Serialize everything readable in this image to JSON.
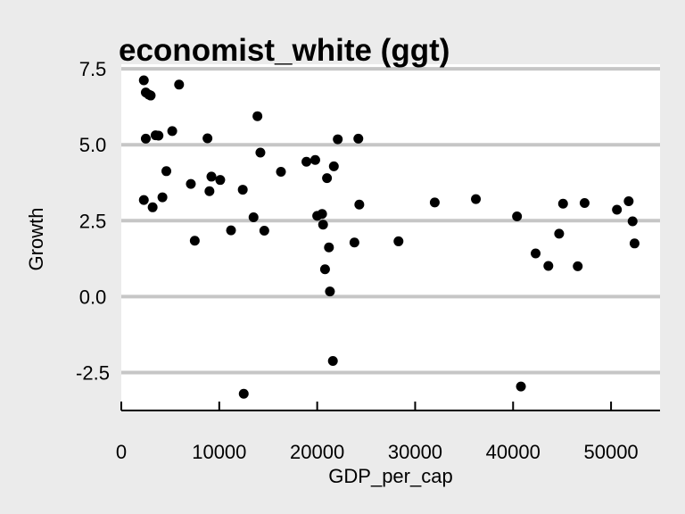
{
  "chart_data": {
    "type": "scatter",
    "title": "economist_white (ggt)",
    "xlabel": "GDP_per_cap",
    "ylabel": "Growth",
    "xlim": [
      0,
      55000
    ],
    "ylim": [
      -3.75,
      7.65
    ],
    "xticks": [
      0,
      10000,
      20000,
      30000,
      40000,
      50000
    ],
    "xtick_labels": [
      "0",
      "10000",
      "20000",
      "30000",
      "40000",
      "50000"
    ],
    "yticks": [
      -2.5,
      0.0,
      2.5,
      5.0,
      7.5
    ],
    "ytick_labels": [
      "-2.5",
      "0.0",
      "2.5",
      "5.0",
      "7.5"
    ],
    "grid": "horizontal",
    "colors": {
      "background": "#ebebeb",
      "panel": "#ffffff",
      "grid": "#c6c6c6",
      "point": "#000000"
    },
    "points": [
      [
        2300,
        7.12
      ],
      [
        2500,
        6.72
      ],
      [
        2800,
        6.65
      ],
      [
        3000,
        6.62
      ],
      [
        5900,
        6.98
      ],
      [
        2500,
        5.2
      ],
      [
        3500,
        5.31
      ],
      [
        3800,
        5.3
      ],
      [
        5200,
        5.45
      ],
      [
        8800,
        5.21
      ],
      [
        2300,
        3.18
      ],
      [
        3200,
        2.94
      ],
      [
        4200,
        3.27
      ],
      [
        4600,
        4.13
      ],
      [
        7100,
        3.71
      ],
      [
        7500,
        1.84
      ],
      [
        9000,
        3.47
      ],
      [
        9200,
        3.95
      ],
      [
        10100,
        3.84
      ],
      [
        11200,
        2.18
      ],
      [
        12400,
        3.52
      ],
      [
        12500,
        -3.2
      ],
      [
        13500,
        2.61
      ],
      [
        13900,
        5.94
      ],
      [
        14200,
        4.74
      ],
      [
        14600,
        2.17
      ],
      [
        16300,
        4.11
      ],
      [
        18900,
        4.44
      ],
      [
        19800,
        4.5
      ],
      [
        20000,
        2.66
      ],
      [
        20500,
        2.72
      ],
      [
        20600,
        2.37
      ],
      [
        20800,
        0.9
      ],
      [
        21000,
        3.9
      ],
      [
        21200,
        1.62
      ],
      [
        21300,
        0.17
      ],
      [
        21600,
        -2.12
      ],
      [
        21700,
        4.29
      ],
      [
        22100,
        5.18
      ],
      [
        23800,
        1.78
      ],
      [
        24200,
        5.2
      ],
      [
        24300,
        3.03
      ],
      [
        28300,
        1.82
      ],
      [
        32000,
        3.1
      ],
      [
        36200,
        3.21
      ],
      [
        40400,
        2.64
      ],
      [
        40800,
        -2.96
      ],
      [
        42300,
        1.42
      ],
      [
        43600,
        1.01
      ],
      [
        44700,
        2.07
      ],
      [
        45100,
        3.06
      ],
      [
        46600,
        1.0
      ],
      [
        47300,
        3.08
      ],
      [
        50600,
        2.86
      ],
      [
        51800,
        3.14
      ],
      [
        52200,
        2.48
      ],
      [
        52400,
        1.75
      ]
    ]
  }
}
